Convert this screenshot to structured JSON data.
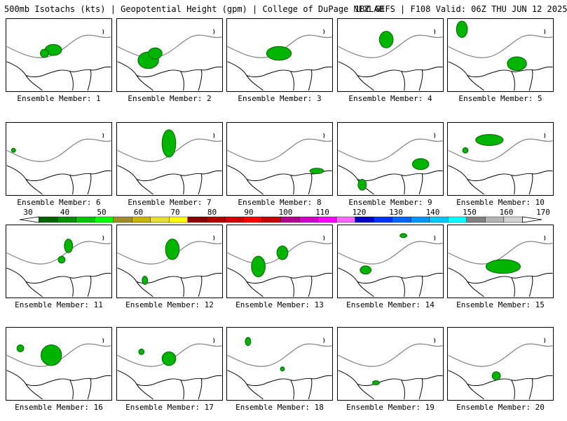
{
  "header": {
    "title": "500mb Isotachs (kts) | Geopotential Height (gpm) | College of DuPage NEXLAB",
    "run_info": "18Z GEFS | F108 Valid: 06Z THU JUN 12 2025"
  },
  "colorbar": {
    "ticks": [
      "30",
      "40",
      "50",
      "60",
      "70",
      "80",
      "90",
      "100",
      "110",
      "120",
      "130",
      "140",
      "150",
      "160",
      "170"
    ],
    "colors": [
      "#006400",
      "#009000",
      "#00c800",
      "#00ff00",
      "#a08c28",
      "#c8b400",
      "#e6dc32",
      "#ffff00",
      "#8b0000",
      "#b40000",
      "#d20000",
      "#ff0000",
      "#c80000",
      "#b4008c",
      "#d200c8",
      "#ff00ff",
      "#ff64ff",
      "#0000c8",
      "#0032ff",
      "#0064ff",
      "#0096ff",
      "#00c8ff",
      "#00ffff",
      "#808080",
      "#b4b4b4",
      "#d2d2d2"
    ]
  },
  "members": [
    {
      "label": "Ensemble Member: 1"
    },
    {
      "label": "Ensemble Member: 2"
    },
    {
      "label": "Ensemble Member: 3"
    },
    {
      "label": "Ensemble Member: 4"
    },
    {
      "label": "Ensemble Member: 5"
    },
    {
      "label": "Ensemble Member: 6"
    },
    {
      "label": "Ensemble Member: 7"
    },
    {
      "label": "Ensemble Member: 8"
    },
    {
      "label": "Ensemble Member: 9"
    },
    {
      "label": "Ensemble Member: 10"
    },
    {
      "label": "Ensemble Member: 11"
    },
    {
      "label": "Ensemble Member: 12"
    },
    {
      "label": "Ensemble Member: 13"
    },
    {
      "label": "Ensemble Member: 14"
    },
    {
      "label": "Ensemble Member: 15"
    },
    {
      "label": "Ensemble Member: 16"
    },
    {
      "label": "Ensemble Member: 17"
    },
    {
      "label": "Ensemble Member: 18"
    },
    {
      "label": "Ensemble Member: 19"
    },
    {
      "label": "Ensemble Member: 20"
    }
  ]
}
